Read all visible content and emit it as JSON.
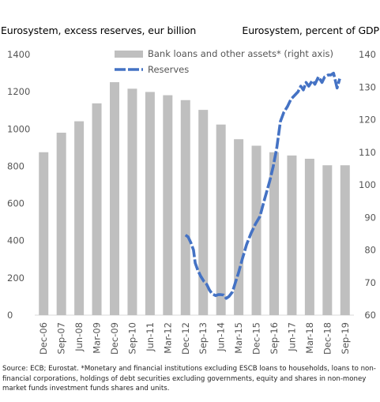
{
  "chart_data": {
    "type": "bar+line",
    "title_left": "Eurosystem, excess reserves, eur billion",
    "title_right": "Eurosystem, percent of GDP",
    "left_axis": {
      "min": 0,
      "max": 1400,
      "ticks": [
        "0",
        "200",
        "400",
        "600",
        "800",
        "1000",
        "1200",
        "1400"
      ]
    },
    "right_axis": {
      "min": 60,
      "max": 140,
      "ticks": [
        "60",
        "70",
        "80",
        "90",
        "100",
        "110",
        "120",
        "130",
        "140"
      ]
    },
    "categories": [
      "Dec-06",
      "Sep-07",
      "Jun-08",
      "Mar-09",
      "Dec-09",
      "Sep-10",
      "Jun-11",
      "Mar-12",
      "Dec-12",
      "Sep-13",
      "Jun-14",
      "Mar-15",
      "Dec-15",
      "Sep-16",
      "Jun-17",
      "Mar-18",
      "Dec-18",
      "Sep-19"
    ],
    "series": [
      {
        "name": "Bank loans and other assets* (right axis)",
        "axis": "right",
        "type": "bar",
        "color": "#bfbfbf",
        "values": [
          110,
          116,
          119.5,
          125,
          131.5,
          129.5,
          128.5,
          127.5,
          126,
          123,
          118.5,
          114,
          112,
          110,
          109,
          108,
          106,
          106
        ]
      },
      {
        "name": "Reserves",
        "axis": "left",
        "type": "line",
        "style": "dashed",
        "color": "#4472c4",
        "points": [
          [
            8.0,
            430
          ],
          [
            8.15,
            420
          ],
          [
            8.3,
            390
          ],
          [
            8.45,
            350
          ],
          [
            8.55,
            280
          ],
          [
            8.7,
            240
          ],
          [
            8.85,
            210
          ],
          [
            9.05,
            180
          ],
          [
            9.2,
            165
          ],
          [
            9.35,
            135
          ],
          [
            9.5,
            115
          ],
          [
            9.7,
            105
          ],
          [
            9.85,
            110
          ],
          [
            10.0,
            110
          ],
          [
            10.15,
            108
          ],
          [
            10.3,
            90
          ],
          [
            10.45,
            100
          ],
          [
            10.65,
            125
          ],
          [
            10.8,
            170
          ],
          [
            11.0,
            230
          ],
          [
            11.2,
            300
          ],
          [
            11.45,
            380
          ],
          [
            11.7,
            440
          ],
          [
            11.95,
            490
          ],
          [
            12.2,
            530
          ],
          [
            12.45,
            620
          ],
          [
            12.75,
            720
          ],
          [
            12.95,
            800
          ],
          [
            13.15,
            900
          ],
          [
            13.35,
            1040
          ],
          [
            13.55,
            1090
          ],
          [
            13.75,
            1120
          ],
          [
            13.95,
            1160
          ],
          [
            14.15,
            1180
          ],
          [
            14.35,
            1200
          ],
          [
            14.5,
            1230
          ],
          [
            14.65,
            1210
          ],
          [
            14.8,
            1250
          ],
          [
            14.95,
            1230
          ],
          [
            15.15,
            1260
          ],
          [
            15.3,
            1240
          ],
          [
            15.5,
            1280
          ],
          [
            15.7,
            1250
          ],
          [
            15.85,
            1280
          ],
          [
            16.05,
            1290
          ],
          [
            16.2,
            1290
          ],
          [
            16.35,
            1300
          ],
          [
            16.55,
            1220
          ],
          [
            16.7,
            1270
          ]
        ]
      }
    ],
    "legend": {
      "position": "top-center",
      "entries": [
        {
          "label": "Bank loans and other assets* (right axis)",
          "type": "bar",
          "color": "#bfbfbf"
        },
        {
          "label": "Reserves",
          "type": "dashed-line",
          "color": "#4472c4"
        }
      ]
    },
    "grid": false
  },
  "footnote": "Source: ECB; Eurostat. *Monetary and financial institutions excluding ESCB loans to households, loans to non-financial corporations, holdings of debt securities excluding governments, equity and shares in non-money market funds investment funds shares and units."
}
